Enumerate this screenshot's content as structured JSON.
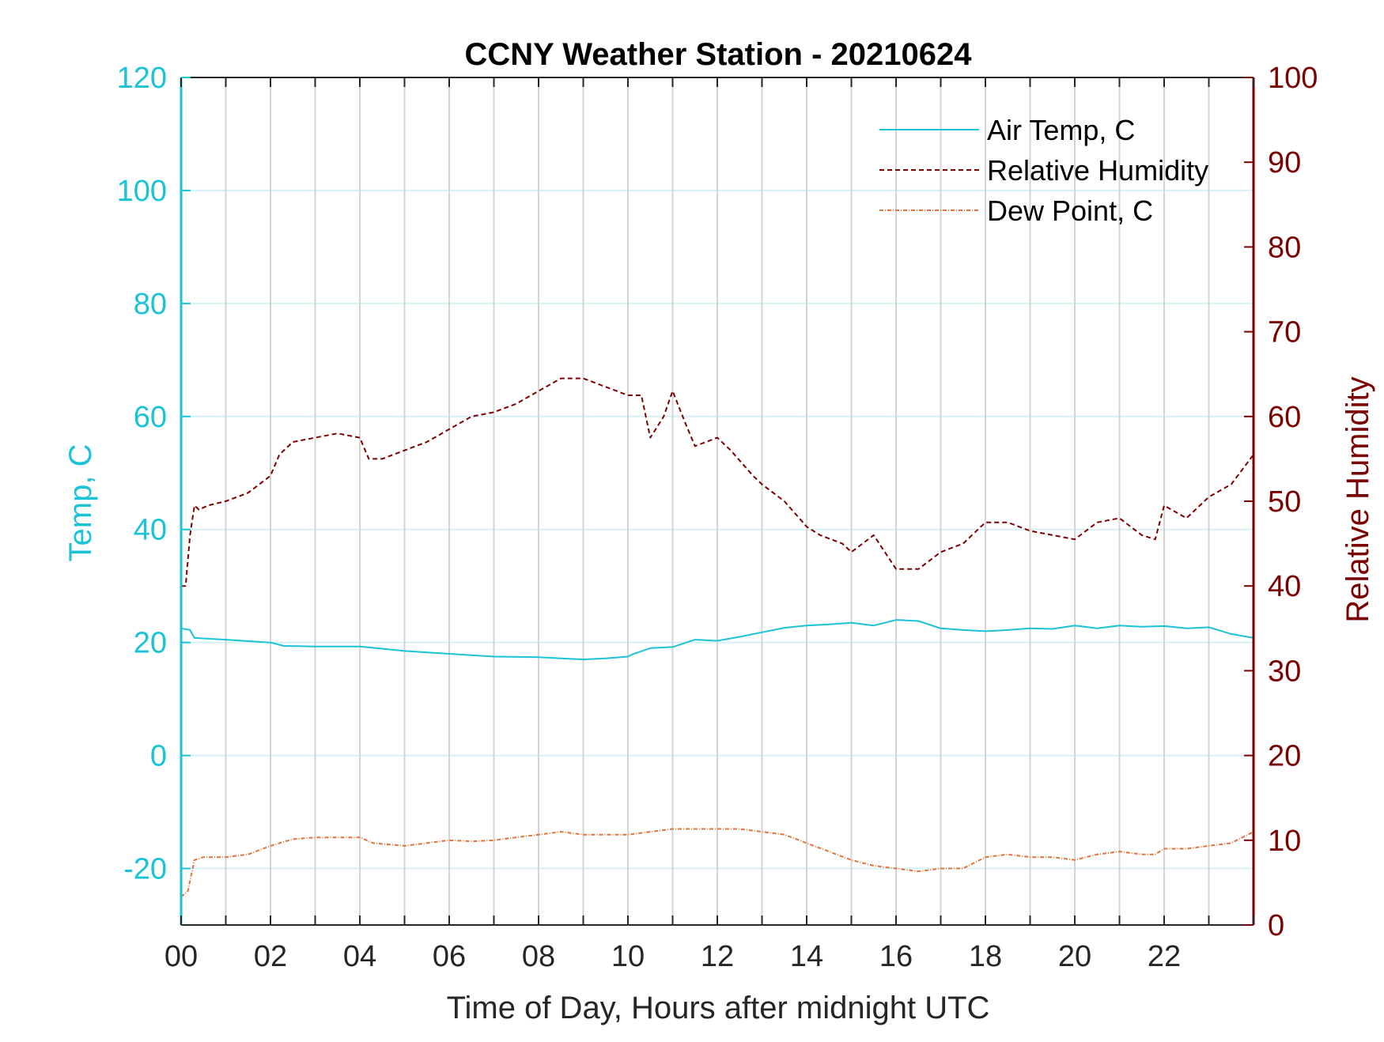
{
  "chart_data": {
    "type": "line",
    "title": "CCNY Weather Station - 20210624",
    "xlabel": "Time of Day, Hours after midnight UTC",
    "ylabel_left": "Temp, C",
    "ylabel_right": "Relative Humidity",
    "xlim": [
      0,
      24
    ],
    "ylim_left": [
      -30,
      120
    ],
    "ylim_right": [
      0,
      100
    ],
    "x_ticks": [
      {
        "value": 0,
        "label": "00"
      },
      {
        "value": 2,
        "label": "02"
      },
      {
        "value": 4,
        "label": "04"
      },
      {
        "value": 6,
        "label": "06"
      },
      {
        "value": 8,
        "label": "08"
      },
      {
        "value": 10,
        "label": "10"
      },
      {
        "value": 12,
        "label": "12"
      },
      {
        "value": 14,
        "label": "14"
      },
      {
        "value": 16,
        "label": "16"
      },
      {
        "value": 18,
        "label": "18"
      },
      {
        "value": 20,
        "label": "20"
      },
      {
        "value": 22,
        "label": "22"
      }
    ],
    "y_ticks_left": [
      -20,
      0,
      20,
      40,
      60,
      80,
      100,
      120
    ],
    "y_ticks_right": [
      0,
      10,
      20,
      30,
      40,
      50,
      60,
      70,
      80,
      90,
      100
    ],
    "grid": true,
    "legend_position": "top-right",
    "colors": {
      "left_axis": "#1ac3d6",
      "right_axis": "#7b0000",
      "grid_vertical": "#d4d4d4",
      "grid_horizontal": "#d6f1f5",
      "dew_point": "#e0743a"
    },
    "series": [
      {
        "name": "Air Temp, C",
        "axis": "left",
        "style": "solid",
        "color": "#1ac3d6",
        "x": [
          0,
          0.2,
          0.3,
          1,
          2,
          2.3,
          3,
          4,
          5,
          6,
          7,
          8,
          8.5,
          9,
          9.5,
          10,
          10.1,
          10.5,
          11,
          11.5,
          12,
          12.5,
          13,
          13.5,
          14,
          14.5,
          15,
          15.5,
          16,
          16.5,
          17,
          17.5,
          18,
          18.5,
          19,
          19.5,
          20,
          20.5,
          21,
          21.5,
          22,
          22.5,
          23,
          23.5,
          24
        ],
        "y": [
          22.5,
          22.2,
          20.8,
          20.5,
          20.0,
          19.4,
          19.3,
          19.3,
          18.5,
          18.0,
          17.5,
          17.4,
          17.2,
          17.0,
          17.2,
          17.5,
          17.9,
          19.0,
          19.2,
          20.5,
          20.3,
          21.0,
          21.8,
          22.6,
          23.0,
          23.2,
          23.5,
          23.0,
          24.0,
          23.8,
          22.5,
          22.2,
          22.0,
          22.2,
          22.5,
          22.4,
          23.0,
          22.5,
          23.0,
          22.8,
          22.9,
          22.5,
          22.7,
          21.5,
          20.8
        ]
      },
      {
        "name": "Relative Humidity",
        "axis": "right",
        "style": "dashed",
        "color": "#7b0000",
        "x": [
          0,
          0.1,
          0.2,
          0.3,
          0.4,
          0.6,
          1,
          1.5,
          2,
          2.2,
          2.5,
          3,
          3.5,
          4,
          4.2,
          4.5,
          5,
          5.5,
          6,
          6.5,
          7,
          7.5,
          8,
          8.5,
          9,
          9.5,
          10,
          10.3,
          10.5,
          10.8,
          11,
          11.3,
          11.5,
          12,
          12.3,
          12.8,
          13,
          13.5,
          14,
          14.3,
          14.8,
          15,
          15.5,
          16,
          16.5,
          17,
          17.5,
          18,
          18.5,
          19,
          19.5,
          20,
          20.5,
          21,
          21.5,
          21.8,
          22,
          22.5,
          23,
          23.5,
          24
        ],
        "y": [
          40,
          40,
          46,
          49.5,
          49,
          49.5,
          50,
          51,
          53,
          55.5,
          57,
          57.5,
          58,
          57.5,
          55,
          55,
          56,
          57,
          58.5,
          60,
          60.5,
          61.5,
          63,
          64.5,
          64.5,
          63.5,
          62.5,
          62.5,
          57.5,
          60,
          63,
          59,
          56.5,
          57.5,
          56,
          53,
          52,
          50,
          47,
          46,
          45,
          44,
          46,
          42,
          42,
          44,
          45,
          47.5,
          47.5,
          46.5,
          46,
          45.5,
          47.5,
          48,
          46,
          45.5,
          49.5,
          48,
          50.5,
          52,
          55.5
        ]
      },
      {
        "name": "Dew Point, C",
        "axis": "left",
        "style": "dash-dot",
        "color": "#e0743a",
        "x": [
          0,
          0.15,
          0.3,
          0.5,
          1,
          1.5,
          2,
          2.5,
          3,
          3.5,
          4,
          4.3,
          5,
          5.5,
          6,
          6.5,
          7,
          7.5,
          8,
          8.5,
          9,
          9.5,
          10,
          10.5,
          11,
          11.5,
          12,
          12.5,
          13,
          13.5,
          14,
          14.5,
          15,
          15.5,
          16,
          16.5,
          17,
          17.5,
          18,
          18.5,
          19,
          19.5,
          20,
          20.5,
          21,
          21.5,
          21.8,
          22,
          22.5,
          23,
          23.5,
          24
        ],
        "y": [
          -25,
          -24,
          -18.5,
          -18,
          -18,
          -17.5,
          -16,
          -14.8,
          -14.5,
          -14.5,
          -14.5,
          -15.5,
          -16,
          -15.5,
          -15,
          -15.2,
          -15,
          -14.5,
          -14,
          -13.5,
          -14,
          -14,
          -14,
          -13.5,
          -13,
          -13,
          -13,
          -13,
          -13.5,
          -14,
          -15.5,
          -17,
          -18.5,
          -19.5,
          -20,
          -20.5,
          -20,
          -20,
          -18,
          -17.5,
          -18,
          -18,
          -18.5,
          -17.5,
          -17,
          -17.5,
          -17.5,
          -16.5,
          -16.5,
          -16,
          -15.5,
          -13.5
        ]
      }
    ]
  }
}
